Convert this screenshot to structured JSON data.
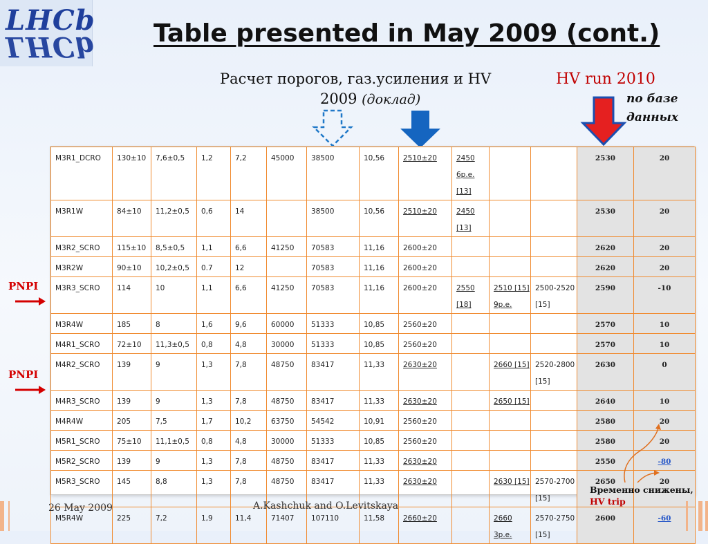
{
  "logo": {
    "top": "LHCb",
    "bottom": "LHCb"
  },
  "title": "Table presented in May 2009 (cont.)",
  "subtitle": {
    "line1": "Расчет  порогов, газ.усиления и HV",
    "line2_year": "2009",
    "line2_note": "(доклад)",
    "hv_run": "HV run 2010",
    "db_line1": "по базе",
    "db_line2": "данных"
  },
  "colors": {
    "accent_red": "#c00000",
    "arrow_blue": "#1565c0",
    "table_border": "#f08a2e"
  },
  "side_labels": [
    "PNPI",
    "PNPI"
  ],
  "table": {
    "rows": [
      [
        "M3R1_DCRO",
        "130±10",
        "7,6±0,5",
        "1,2",
        "7,2",
        "45000",
        "38500",
        "10,56",
        "2510±20",
        "2450 6p.e. [13]",
        "",
        "",
        "2530",
        "20"
      ],
      [
        "M3R1W",
        "84±10",
        "11,2±0,5",
        "0,6",
        "14",
        "",
        "38500",
        "10,56",
        "2510±20",
        "2450 [13]",
        "",
        "",
        "2530",
        "20"
      ],
      [
        "M3R2_SCRO",
        "115±10",
        "8,5±0,5",
        "1,1",
        "6,6",
        "41250",
        "70583",
        "11,16",
        "2600±20",
        "",
        "",
        "",
        "2620",
        "20"
      ],
      [
        "M3R2W",
        "90±10",
        "10,2±0,5",
        "0.7",
        "12",
        "",
        "70583",
        "11,16",
        "2600±20",
        "",
        "",
        "",
        "2620",
        "20"
      ],
      [
        "M3R3_SCRO",
        "114",
        "10",
        "1,1",
        "6,6",
        "41250",
        "70583",
        "11,16",
        "2600±20",
        "2550 [18]",
        "2510 [15] 9p.e.",
        "2500-2520 [15]",
        "2590",
        "-10"
      ],
      [
        "M3R4W",
        "185",
        "8",
        "1,6",
        "9,6",
        "60000",
        "51333",
        "10,85",
        "2560±20",
        "",
        "",
        "",
        "2570",
        "10"
      ],
      [
        "M4R1_SCRO",
        "72±10",
        "11,3±0,5",
        "0,8",
        "4,8",
        "30000",
        "51333",
        "10,85",
        "2560±20",
        "",
        "",
        "",
        "2570",
        "10"
      ],
      [
        "M4R2_SCRO",
        "139",
        "9",
        "1,3",
        "7,8",
        "48750",
        "83417",
        "11,33",
        "2630±20",
        "",
        "2660 [15]",
        "2520-2800 [15]",
        "2630",
        "0"
      ],
      [
        "M4R3_SCRO",
        "139",
        "9",
        "1,3",
        "7,8",
        "48750",
        "83417",
        "11,33",
        "2630±20",
        "",
        "2650 [15]",
        "",
        "2640",
        "10"
      ],
      [
        "M4R4W",
        "205",
        "7,5",
        "1,7",
        "10,2",
        "63750",
        "54542",
        "10,91",
        "2560±20",
        "",
        "",
        "",
        "2580",
        "20"
      ],
      [
        "M5R1_SCRO",
        "75±10",
        "11,1±0,5",
        "0,8",
        "4,8",
        "30000",
        "51333",
        "10,85",
        "2560±20",
        "",
        "",
        "",
        "2580",
        "20"
      ],
      [
        "M5R2_SCRO",
        "139",
        "9",
        "1,3",
        "7,8",
        "48750",
        "83417",
        "11,33",
        "2630±20",
        "",
        "",
        "",
        "2550",
        "-80"
      ],
      [
        "M5R3_SCRO",
        "145",
        "8,8",
        "1,3",
        "7,8",
        "48750",
        "83417",
        "11,33",
        "2630±20",
        "",
        "2630 [15]",
        "2570-2700 [15]",
        "2650",
        "20"
      ],
      [
        "M5R4W",
        "225",
        "7,2",
        "1,9",
        "11,4",
        "71407",
        "107110",
        "11,58",
        "2660±20",
        "",
        "2660 3p.e.",
        "2570-2750 [15]",
        "2600",
        "-60"
      ]
    ]
  },
  "note": {
    "line1": "Временно снижены,",
    "line2": "HV trip"
  },
  "footer": {
    "date": "26 May 2009",
    "authors": "A.Kashchuk and O.Levitskaya"
  }
}
